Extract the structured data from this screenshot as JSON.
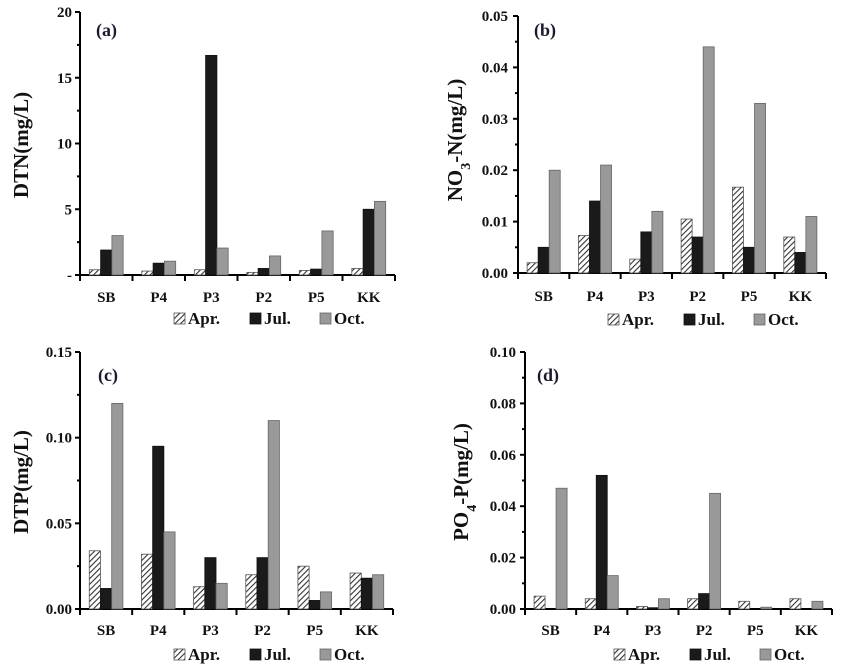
{
  "figure": {
    "legend": [
      {
        "name": "Apr.",
        "style": "hatch"
      },
      {
        "name": "Jul.",
        "color": "#1a1a1a"
      },
      {
        "name": "Oct.",
        "color": "#999999"
      }
    ],
    "colors": {
      "hatch_fg": "#333333",
      "hatch_bg": "#ffffff",
      "jul": "#1a1a1a",
      "oct": "#999999",
      "axis": "#000000"
    }
  },
  "chart_data": [
    {
      "type": "bar",
      "panel": "(a)",
      "title": "",
      "ylabel": "DTN(mg/L)",
      "xlabel": "",
      "categories": [
        "SB",
        "P4",
        "P3",
        "P2",
        "P5",
        "KK"
      ],
      "ylim": [
        0,
        20
      ],
      "yticks": [
        0,
        5,
        10,
        15,
        20
      ],
      "ytick_labels": [
        "-",
        "5",
        "10",
        "15",
        "20"
      ],
      "series": [
        {
          "name": "Apr.",
          "values": [
            0.4,
            0.3,
            0.4,
            0.2,
            0.35,
            0.5
          ]
        },
        {
          "name": "Jul.",
          "values": [
            1.9,
            0.9,
            16.7,
            0.5,
            0.45,
            5.0
          ]
        },
        {
          "name": "Oct.",
          "values": [
            3.0,
            1.05,
            2.05,
            1.45,
            3.35,
            5.6
          ]
        }
      ],
      "legend_position": "bottom",
      "grid": false
    },
    {
      "type": "bar",
      "panel": "(b)",
      "title": "",
      "ylabel": "NO3-N(mg/L)",
      "ylabel_parts": [
        "NO",
        "3",
        "-N(mg/L)"
      ],
      "xlabel": "",
      "categories": [
        "SB",
        "P4",
        "P3",
        "P2",
        "P5",
        "KK"
      ],
      "ylim": [
        0,
        0.05
      ],
      "yticks": [
        0,
        0.01,
        0.02,
        0.03,
        0.04,
        0.05
      ],
      "ytick_labels": [
        "0.00",
        "0.01",
        "0.02",
        "0.03",
        "0.04",
        "0.05"
      ],
      "series": [
        {
          "name": "Apr.",
          "values": [
            0.002,
            0.0073,
            0.0027,
            0.0105,
            0.0167,
            0.007
          ]
        },
        {
          "name": "Jul.",
          "values": [
            0.005,
            0.014,
            0.008,
            0.007,
            0.005,
            0.004
          ]
        },
        {
          "name": "Oct.",
          "values": [
            0.02,
            0.021,
            0.012,
            0.044,
            0.033,
            0.011
          ]
        }
      ],
      "legend_position": "bottom",
      "grid": false
    },
    {
      "type": "bar",
      "panel": "(c)",
      "title": "",
      "ylabel": "DTP(mg/L)",
      "xlabel": "",
      "categories": [
        "SB",
        "P4",
        "P3",
        "P2",
        "P5",
        "KK"
      ],
      "ylim": [
        0,
        0.15
      ],
      "yticks": [
        0,
        0.05,
        0.1,
        0.15
      ],
      "ytick_labels": [
        "0.00",
        "0.05",
        "0.10",
        "0.15"
      ],
      "series": [
        {
          "name": "Apr.",
          "values": [
            0.034,
            0.032,
            0.013,
            0.02,
            0.025,
            0.021
          ]
        },
        {
          "name": "Jul.",
          "values": [
            0.012,
            0.095,
            0.03,
            0.03,
            0.005,
            0.018
          ]
        },
        {
          "name": "Oct.",
          "values": [
            0.12,
            0.045,
            0.015,
            0.11,
            0.01,
            0.02
          ]
        }
      ],
      "legend_position": "bottom",
      "grid": false
    },
    {
      "type": "bar",
      "panel": "(d)",
      "title": "",
      "ylabel": "PO4-P(mg/L)",
      "ylabel_parts": [
        "PO",
        "4",
        "-P(mg/L)"
      ],
      "xlabel": "",
      "categories": [
        "SB",
        "P4",
        "P3",
        "P2",
        "P5",
        "KK"
      ],
      "ylim": [
        0,
        0.1
      ],
      "yticks": [
        0,
        0.02,
        0.04,
        0.06,
        0.08,
        0.1
      ],
      "ytick_labels": [
        "0.00",
        "0.02",
        "0.04",
        "0.06",
        "0.08",
        "0.10"
      ],
      "series": [
        {
          "name": "Apr.",
          "values": [
            0.005,
            0.004,
            0.001,
            0.004,
            0.003,
            0.004
          ]
        },
        {
          "name": "Jul.",
          "values": [
            0.0,
            0.052,
            0.0005,
            0.006,
            0.0,
            0.0
          ]
        },
        {
          "name": "Oct.",
          "values": [
            0.047,
            0.013,
            0.004,
            0.045,
            0.0007,
            0.003
          ]
        }
      ],
      "legend_position": "bottom",
      "grid": false
    }
  ]
}
